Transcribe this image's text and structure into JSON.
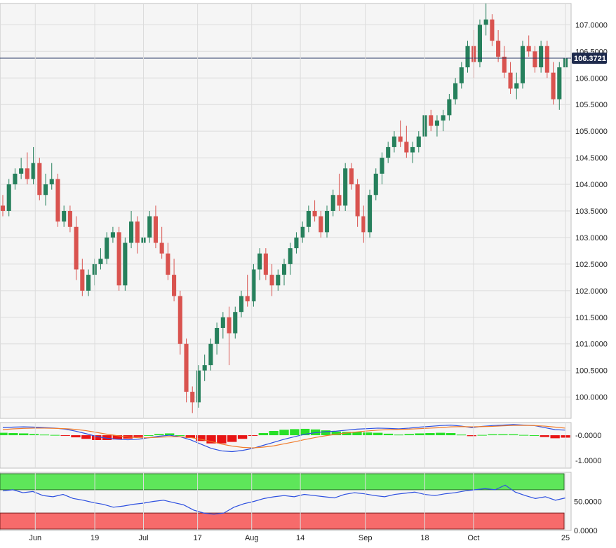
{
  "chart_data": [
    {
      "type": "candlestick",
      "panel": "price",
      "ylim": [
        99.6,
        107.4
      ],
      "y_ticks": [
        "100.0000",
        "100.5000",
        "101.0000",
        "101.5000",
        "102.0000",
        "102.5000",
        "103.0000",
        "103.5000",
        "104.0000",
        "104.5000",
        "105.0000",
        "105.5000",
        "106.0000",
        "106.5000",
        "107.0000"
      ],
      "current_price": 106.3721,
      "current_price_label": "106.3721",
      "x_ticks": [
        {
          "label": "Jun",
          "index": 6
        },
        {
          "label": "19",
          "index": 17
        },
        {
          "label": "Jul",
          "index": 26
        },
        {
          "label": "17",
          "index": 36
        },
        {
          "label": "Aug",
          "index": 46
        },
        {
          "label": "14",
          "index": 55
        },
        {
          "label": "Sep",
          "index": 67
        },
        {
          "label": "18",
          "index": 78
        },
        {
          "label": "Oct",
          "index": 87
        },
        {
          "label": "25",
          "index": 104
        }
      ],
      "grid": true,
      "up_color": "#26805c",
      "down_color": "#d9534f",
      "candles": [
        [
          103.6,
          103.8,
          103.4,
          103.5
        ],
        [
          103.5,
          104.1,
          103.4,
          104.0
        ],
        [
          104.0,
          104.3,
          103.9,
          104.2
        ],
        [
          104.2,
          104.5,
          104.1,
          104.3
        ],
        [
          104.3,
          104.6,
          104.0,
          104.1
        ],
        [
          104.1,
          104.7,
          104.0,
          104.4
        ],
        [
          104.4,
          104.5,
          103.7,
          103.8
        ],
        [
          103.8,
          104.2,
          103.6,
          104.0
        ],
        [
          104.0,
          104.4,
          103.9,
          104.1
        ],
        [
          104.1,
          104.2,
          103.2,
          103.3
        ],
        [
          103.3,
          103.6,
          103.2,
          103.5
        ],
        [
          103.5,
          103.6,
          103.1,
          103.2
        ],
        [
          103.2,
          103.4,
          102.2,
          102.4
        ],
        [
          102.4,
          102.6,
          101.9,
          102.0
        ],
        [
          102.0,
          102.4,
          101.9,
          102.3
        ],
        [
          102.3,
          102.6,
          102.1,
          102.5
        ],
        [
          102.5,
          102.8,
          102.4,
          102.6
        ],
        [
          102.6,
          103.1,
          102.5,
          103.0
        ],
        [
          103.0,
          103.2,
          102.9,
          103.1
        ],
        [
          103.1,
          103.2,
          102.0,
          102.1
        ],
        [
          102.1,
          103.0,
          102.0,
          102.9
        ],
        [
          102.9,
          103.5,
          102.8,
          103.3
        ],
        [
          103.3,
          103.4,
          102.7,
          102.9
        ],
        [
          102.9,
          103.1,
          102.6,
          103.0
        ],
        [
          103.0,
          103.5,
          102.9,
          103.4
        ],
        [
          103.4,
          103.6,
          102.8,
          102.9
        ],
        [
          102.9,
          103.2,
          102.6,
          102.7
        ],
        [
          102.7,
          102.9,
          102.2,
          102.3
        ],
        [
          102.3,
          102.6,
          101.8,
          101.9
        ],
        [
          101.9,
          102.0,
          100.8,
          101.0
        ],
        [
          101.0,
          101.1,
          99.9,
          100.1
        ],
        [
          100.1,
          100.2,
          99.7,
          99.9
        ],
        [
          99.9,
          100.6,
          99.8,
          100.5
        ],
        [
          100.5,
          100.8,
          100.3,
          100.6
        ],
        [
          100.6,
          101.1,
          100.5,
          101.0
        ],
        [
          101.0,
          101.4,
          100.8,
          101.3
        ],
        [
          101.3,
          101.6,
          101.1,
          101.5
        ],
        [
          101.5,
          101.7,
          100.6,
          101.2
        ],
        [
          101.2,
          101.7,
          101.1,
          101.6
        ],
        [
          101.6,
          102.0,
          101.5,
          101.9
        ],
        [
          101.9,
          102.3,
          101.7,
          101.8
        ],
        [
          101.8,
          102.5,
          101.7,
          102.4
        ],
        [
          102.4,
          102.8,
          102.2,
          102.7
        ],
        [
          102.7,
          102.8,
          102.2,
          102.3
        ],
        [
          102.3,
          102.5,
          101.9,
          102.1
        ],
        [
          102.1,
          102.4,
          102.0,
          102.3
        ],
        [
          102.3,
          102.6,
          102.1,
          102.5
        ],
        [
          102.5,
          102.9,
          102.3,
          102.8
        ],
        [
          102.8,
          103.1,
          102.7,
          103.0
        ],
        [
          103.0,
          103.3,
          102.9,
          103.2
        ],
        [
          103.2,
          103.6,
          103.1,
          103.5
        ],
        [
          103.5,
          103.7,
          103.3,
          103.4
        ],
        [
          103.4,
          103.5,
          103.0,
          103.1
        ],
        [
          103.1,
          103.6,
          103.0,
          103.5
        ],
        [
          103.5,
          103.9,
          103.4,
          103.8
        ],
        [
          103.8,
          104.2,
          103.5,
          103.6
        ],
        [
          103.6,
          104.4,
          103.5,
          104.3
        ],
        [
          104.3,
          104.4,
          103.9,
          104.0
        ],
        [
          104.0,
          104.1,
          103.2,
          103.4
        ],
        [
          103.4,
          103.6,
          102.9,
          103.1
        ],
        [
          103.1,
          103.9,
          103.0,
          103.8
        ],
        [
          103.8,
          104.3,
          103.7,
          104.2
        ],
        [
          104.2,
          104.6,
          104.0,
          104.5
        ],
        [
          104.5,
          104.8,
          104.4,
          104.7
        ],
        [
          104.7,
          105.0,
          104.6,
          104.9
        ],
        [
          104.9,
          105.2,
          104.7,
          104.8
        ],
        [
          104.8,
          105.1,
          104.5,
          104.6
        ],
        [
          104.6,
          104.8,
          104.4,
          104.7
        ],
        [
          104.7,
          105.0,
          104.6,
          104.9
        ],
        [
          104.9,
          105.4,
          104.8,
          105.3
        ],
        [
          105.3,
          105.4,
          105.0,
          105.1
        ],
        [
          105.1,
          105.3,
          104.9,
          105.2
        ],
        [
          105.2,
          105.4,
          105.0,
          105.3
        ],
        [
          105.3,
          105.7,
          105.2,
          105.6
        ],
        [
          105.6,
          106.0,
          105.5,
          105.9
        ],
        [
          105.9,
          106.3,
          105.8,
          106.2
        ],
        [
          106.2,
          106.7,
          106.1,
          106.6
        ],
        [
          106.6,
          106.9,
          106.0,
          106.3
        ],
        [
          106.3,
          107.1,
          106.2,
          107.0
        ],
        [
          107.0,
          107.4,
          106.8,
          107.1
        ],
        [
          107.1,
          107.2,
          106.6,
          106.7
        ],
        [
          106.7,
          106.9,
          106.3,
          106.4
        ],
        [
          106.4,
          106.6,
          106.0,
          106.1
        ],
        [
          106.1,
          106.3,
          105.7,
          105.8
        ],
        [
          105.8,
          106.1,
          105.6,
          105.9
        ],
        [
          105.9,
          106.7,
          105.8,
          106.6
        ],
        [
          106.6,
          106.8,
          106.4,
          106.5
        ],
        [
          106.5,
          106.6,
          106.1,
          106.2
        ],
        [
          106.2,
          106.7,
          106.1,
          106.6
        ],
        [
          106.6,
          106.7,
          106.0,
          106.1
        ],
        [
          106.1,
          106.3,
          105.5,
          105.6
        ],
        [
          105.6,
          106.3,
          105.4,
          106.2
        ],
        [
          106.2,
          106.5,
          106.1,
          106.37
        ]
      ]
    },
    {
      "type": "line",
      "panel": "macd",
      "ylim": [
        -1.3,
        0.5
      ],
      "y_ticks": [
        "-0.0000",
        "-1.0000"
      ],
      "series": [
        {
          "role": "macd",
          "color": "#2c4fe0",
          "values": [
            0.3,
            0.32,
            0.33,
            0.32,
            0.3,
            0.28,
            0.24,
            0.16,
            0.06,
            -0.05,
            -0.12,
            -0.16,
            -0.18,
            -0.16,
            -0.1,
            -0.04,
            0.0,
            -0.06,
            -0.18,
            -0.35,
            -0.52,
            -0.62,
            -0.65,
            -0.6,
            -0.52,
            -0.4,
            -0.28,
            -0.16,
            -0.06,
            0.04,
            0.1,
            0.14,
            0.16,
            0.2,
            0.24,
            0.26,
            0.28,
            0.27,
            0.25,
            0.28,
            0.32,
            0.35,
            0.38,
            0.4,
            0.36,
            0.3,
            0.35,
            0.38,
            0.4,
            0.42,
            0.4,
            0.38,
            0.3,
            0.22,
            0.2
          ]
        },
        {
          "role": "signal",
          "color": "#f07b2a",
          "values": [
            0.22,
            0.25,
            0.27,
            0.28,
            0.28,
            0.27,
            0.26,
            0.23,
            0.18,
            0.11,
            0.04,
            -0.02,
            -0.07,
            -0.1,
            -0.1,
            -0.08,
            -0.06,
            -0.06,
            -0.09,
            -0.16,
            -0.25,
            -0.35,
            -0.43,
            -0.48,
            -0.5,
            -0.47,
            -0.42,
            -0.34,
            -0.26,
            -0.17,
            -0.09,
            -0.02,
            0.04,
            0.09,
            0.13,
            0.17,
            0.2,
            0.22,
            0.23,
            0.24,
            0.26,
            0.28,
            0.3,
            0.33,
            0.34,
            0.33,
            0.34,
            0.35,
            0.37,
            0.39,
            0.39,
            0.38,
            0.36,
            0.32,
            0.28
          ]
        }
      ]
    },
    {
      "type": "line",
      "panel": "rsi",
      "ylim": [
        0,
        100
      ],
      "y_ticks": [
        "50.0000",
        "0.0000"
      ],
      "overbought": 70,
      "oversold": 30,
      "color": "#2c4fe0",
      "values": [
        68,
        70,
        65,
        67,
        60,
        58,
        62,
        55,
        52,
        48,
        45,
        40,
        42,
        45,
        47,
        50,
        52,
        48,
        44,
        35,
        30,
        28,
        30,
        40,
        46,
        50,
        55,
        58,
        60,
        58,
        62,
        60,
        58,
        56,
        62,
        65,
        63,
        60,
        58,
        62,
        64,
        66,
        62,
        60,
        63,
        65,
        68,
        70,
        72,
        70,
        78,
        66,
        60,
        55,
        58,
        52,
        56
      ]
    }
  ]
}
